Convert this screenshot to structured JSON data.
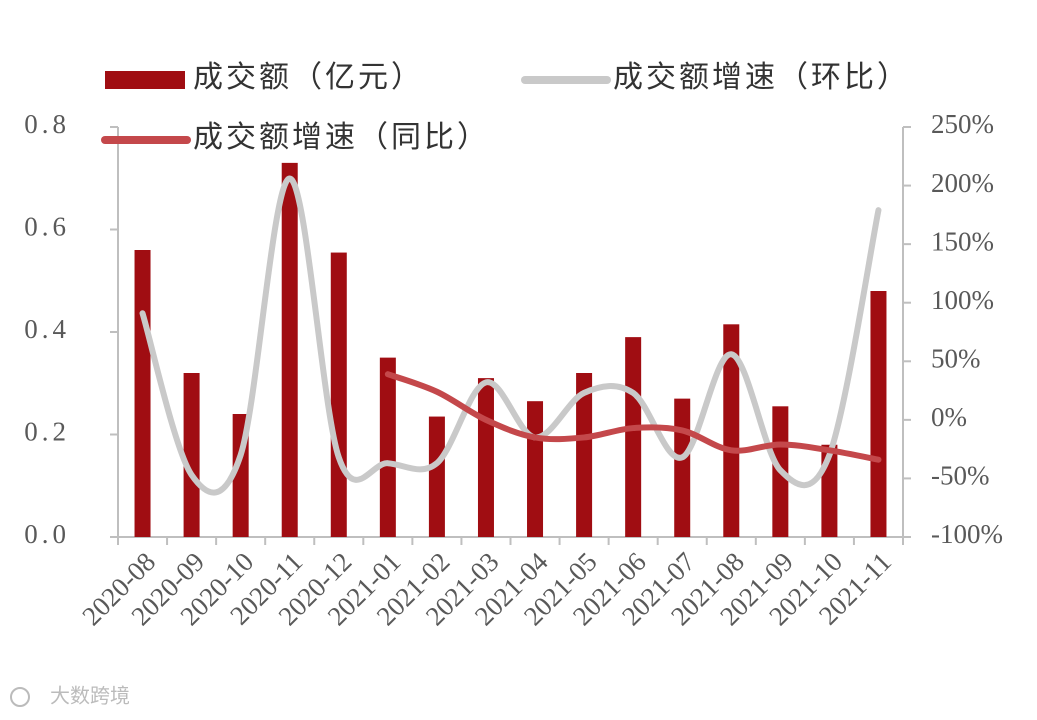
{
  "chart_data": {
    "type": "bar-line",
    "categories": [
      "2020-08",
      "2020-09",
      "2020-10",
      "2020-11",
      "2020-12",
      "2021-01",
      "2021-02",
      "2021-03",
      "2021-04",
      "2021-05",
      "2021-06",
      "2021-07",
      "2021-08",
      "2021-09",
      "2021-10",
      "2021-11"
    ],
    "series": [
      {
        "name": "成交额（亿元）",
        "type": "bar",
        "color": "#a00d12",
        "values": [
          0.56,
          0.32,
          0.24,
          0.73,
          0.555,
          0.35,
          0.235,
          0.31,
          0.265,
          0.32,
          0.39,
          0.27,
          0.415,
          0.255,
          0.18,
          0.48
        ]
      },
      {
        "name": "成交额增速（环比）",
        "type": "line",
        "axis": "y2",
        "color": "#c9c9c9",
        "values": [
          91,
          -47,
          -30,
          206,
          -32,
          -37,
          -37,
          32,
          -15,
          23,
          23,
          -32,
          56,
          -43,
          -30,
          179
        ]
      },
      {
        "name": "成交额增速（同比）",
        "type": "line",
        "axis": "y2",
        "color": "#c4484b",
        "values": [
          null,
          null,
          null,
          null,
          null,
          39,
          24,
          0,
          -15,
          -15,
          -7,
          -9,
          -26,
          -21,
          -26,
          -34
        ]
      }
    ],
    "ylim": [
      0,
      0.8
    ],
    "yticks": [
      {
        "value": 0,
        "label": "0.0"
      },
      0.2,
      0.4,
      0.6,
      0.8
    ],
    "y2lim": [
      -100,
      250
    ],
    "y2ticks": [
      {
        "value": -100,
        "label": "-100%"
      },
      {
        "value": -50,
        "label": "-50%"
      },
      {
        "value": 0,
        "label": "0%"
      },
      {
        "value": 50,
        "label": "50%"
      },
      {
        "value": 100,
        "label": "100%"
      },
      {
        "value": 150,
        "label": "150%"
      },
      {
        "value": 200,
        "label": "200%"
      },
      {
        "value": 250,
        "label": "250%"
      }
    ],
    "watermark": "大数跨境"
  }
}
